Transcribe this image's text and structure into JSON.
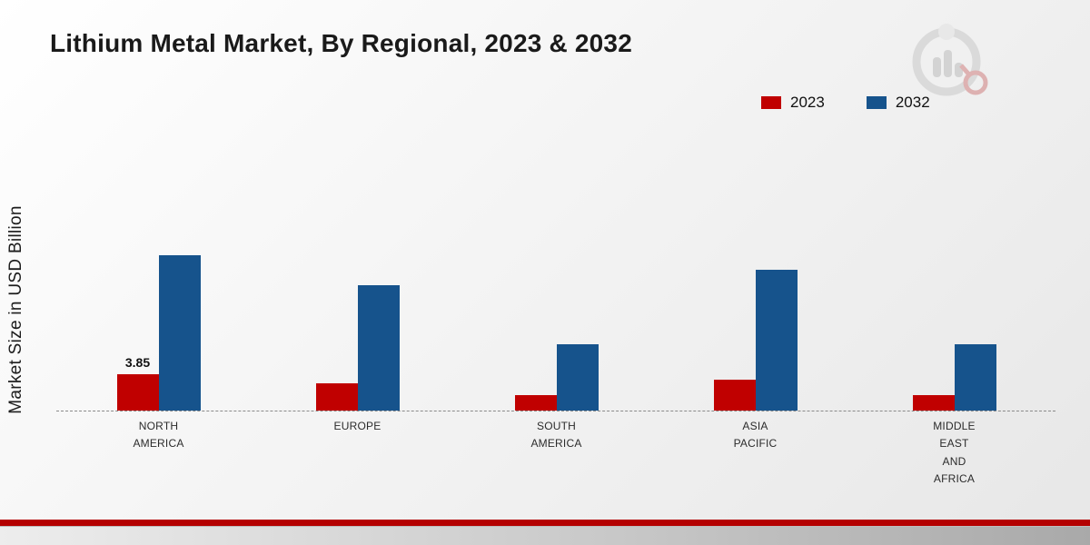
{
  "title": "Lithium Metal Market, By Regional, 2023 & 2032",
  "y_axis_label": "Market Size in USD Billion",
  "legend": [
    {
      "label": "2023",
      "color": "#c00000"
    },
    {
      "label": "2032",
      "color": "#16538c"
    }
  ],
  "logo": {
    "name": "market-research-future-logo",
    "accent_color": "#c00000",
    "gray_color": "#bfbfbf"
  },
  "chart_data": {
    "type": "bar",
    "title": "Lithium Metal Market, By Regional, 2023 & 2032",
    "ylabel": "Market Size in USD Billion",
    "xlabel": "",
    "categories": [
      "NORTH AMERICA",
      "EUROPE",
      "SOUTH AMERICA",
      "ASIA PACIFIC",
      "MIDDLE EAST AND AFRICA"
    ],
    "series": [
      {
        "name": "2023",
        "color": "#c00000",
        "values": [
          3.85,
          2.9,
          1.6,
          3.3,
          1.6
        ]
      },
      {
        "name": "2032",
        "color": "#16538c",
        "values": [
          16.5,
          13.4,
          7.1,
          15.0,
          7.1
        ]
      }
    ],
    "value_labels": [
      {
        "series_index": 0,
        "category_index": 0,
        "text": "3.85"
      }
    ],
    "ylim": [
      0,
      18
    ],
    "grid": false,
    "legend_position": "top-right",
    "baseline_style": "dashed"
  }
}
